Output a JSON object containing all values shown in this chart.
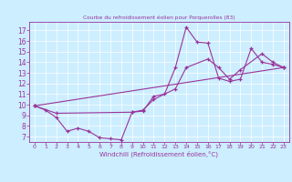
{
  "title": "Courbe du refroidissement éolien pour Porquerolles (83)",
  "xlabel": "Windchill (Refroidissement éolien,°C)",
  "bg_color": "#cceeff",
  "line_color": "#993399",
  "xlim": [
    -0.5,
    23.5
  ],
  "ylim": [
    6.5,
    17.8
  ],
  "xticks": [
    0,
    1,
    2,
    3,
    4,
    5,
    6,
    7,
    8,
    9,
    10,
    11,
    12,
    13,
    14,
    15,
    16,
    17,
    18,
    19,
    20,
    21,
    22,
    23
  ],
  "yticks": [
    7,
    8,
    9,
    10,
    11,
    12,
    13,
    14,
    15,
    16,
    17
  ],
  "series": [
    {
      "x": [
        0,
        1,
        2,
        3,
        4,
        5,
        6,
        7,
        8,
        9,
        10,
        11,
        12,
        13,
        14,
        15,
        16,
        17,
        18,
        19,
        20,
        21,
        22,
        23
      ],
      "y": [
        9.9,
        9.5,
        8.8,
        7.5,
        7.8,
        7.5,
        6.9,
        6.8,
        6.7,
        9.3,
        9.4,
        10.8,
        11.0,
        13.5,
        17.3,
        15.9,
        15.8,
        12.5,
        12.2,
        12.4,
        15.3,
        14.0,
        13.8,
        13.5
      ]
    },
    {
      "x": [
        0,
        2,
        9,
        10,
        11,
        13,
        14,
        16,
        17,
        18,
        19,
        21,
        22,
        23
      ],
      "y": [
        9.9,
        9.2,
        9.3,
        9.5,
        10.5,
        11.5,
        13.5,
        14.3,
        13.5,
        12.4,
        13.3,
        14.8,
        14.0,
        13.5
      ]
    },
    {
      "x": [
        0,
        23
      ],
      "y": [
        9.9,
        13.5
      ]
    }
  ]
}
